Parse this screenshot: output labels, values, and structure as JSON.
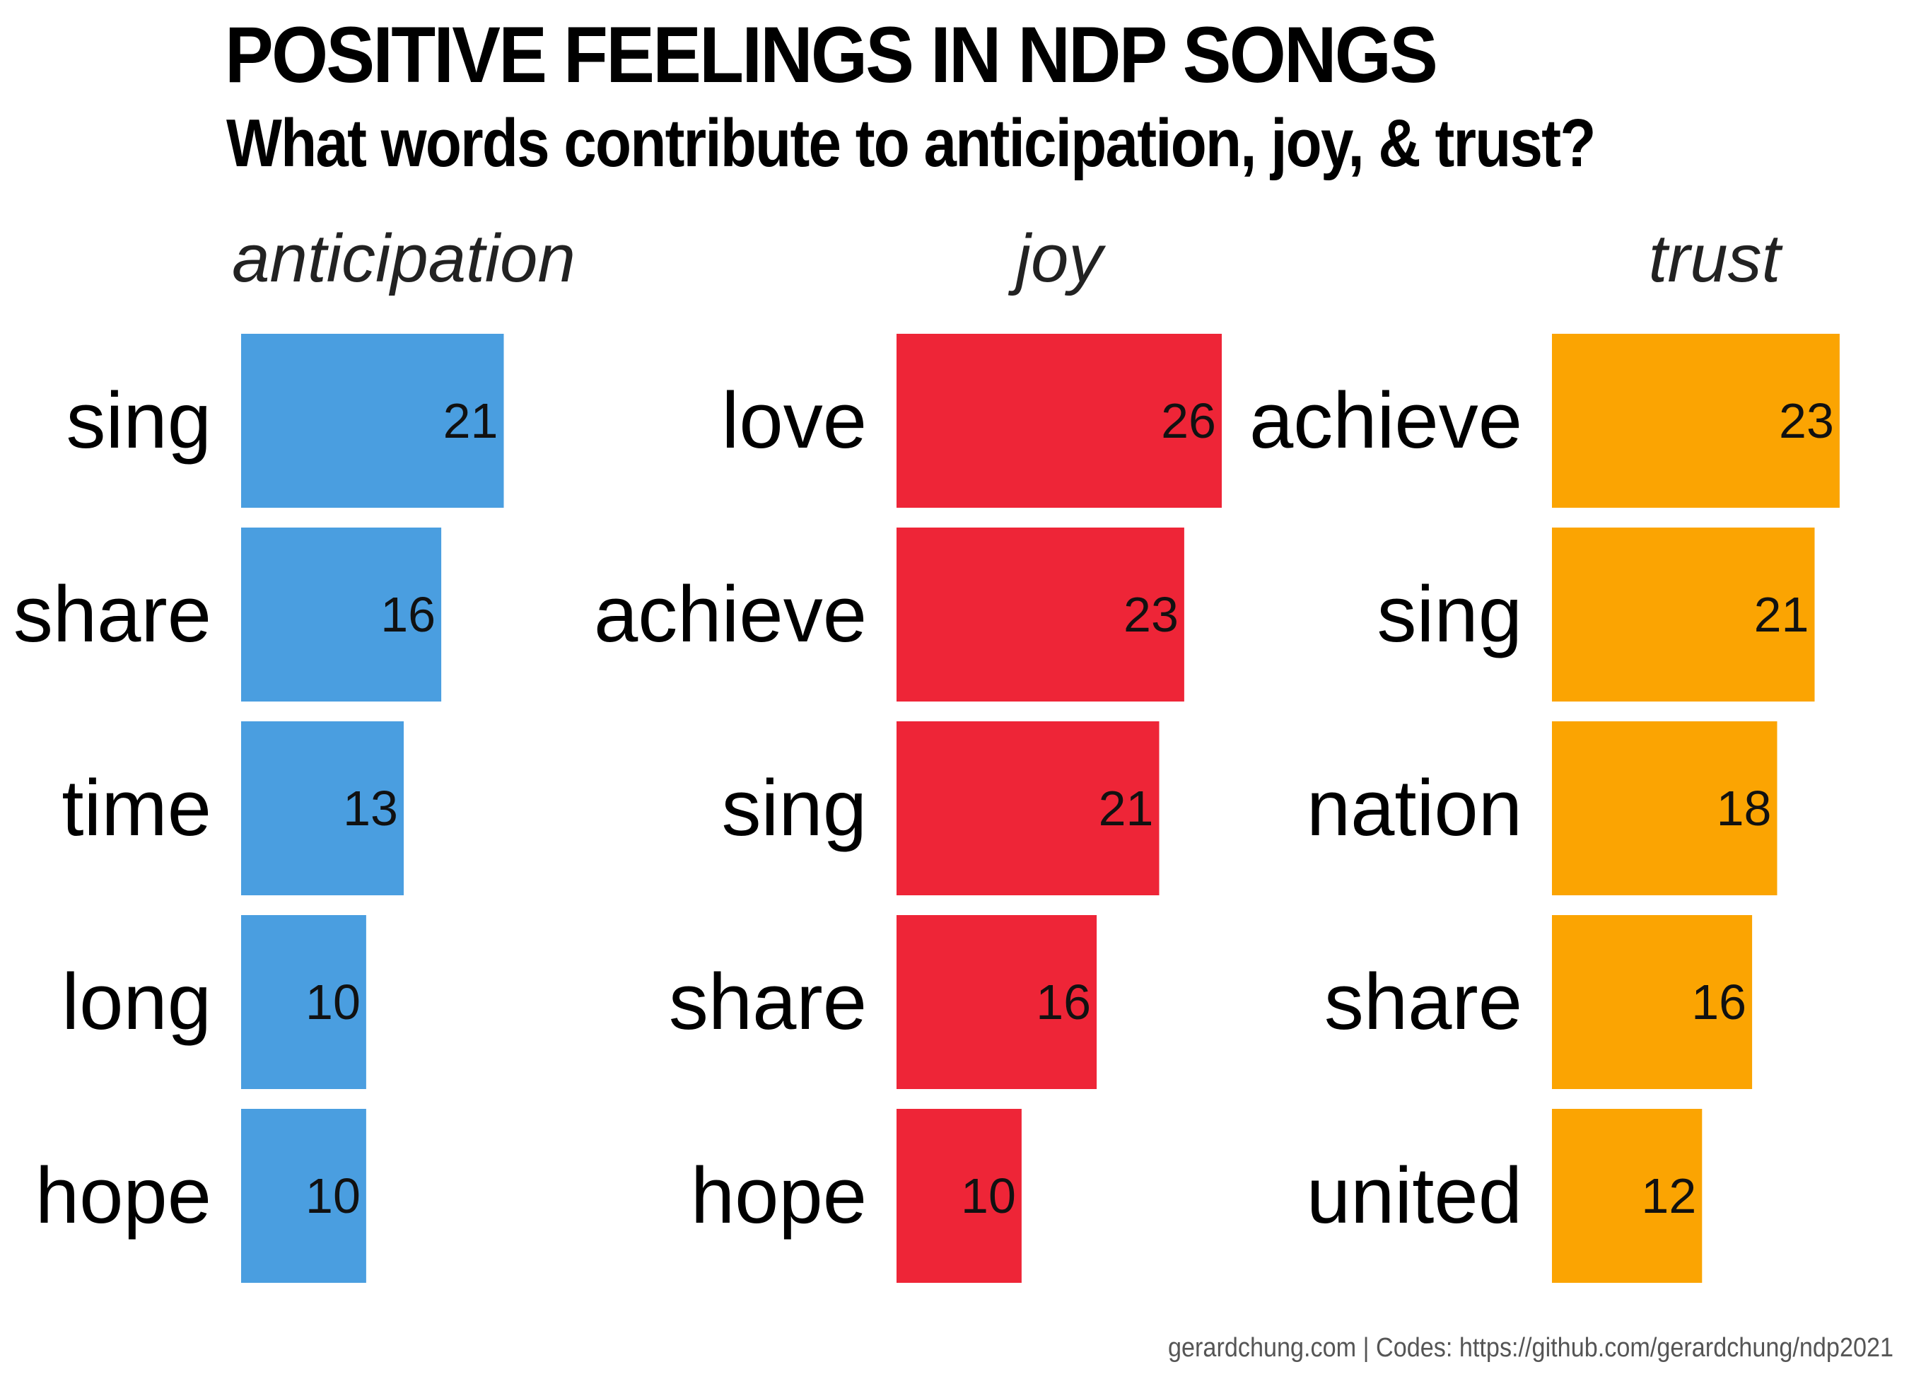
{
  "header": {
    "title": "POSITIVE FEELINGS IN NDP SONGS",
    "subtitle": "What words contribute to anticipation, joy, & trust?"
  },
  "caption": "gerardchung.com | Codes: https://github.com/gerardchung/ndp2021",
  "chart_data": [
    {
      "type": "bar",
      "orientation": "horizontal",
      "title": "anticipation",
      "color": "#4a9ee0",
      "categories": [
        "sing",
        "share",
        "time",
        "long",
        "hope"
      ],
      "values": [
        21,
        16,
        13,
        10,
        10
      ],
      "xlim": [
        0,
        26
      ]
    },
    {
      "type": "bar",
      "orientation": "horizontal",
      "title": "joy",
      "color": "#ee2537",
      "categories": [
        "love",
        "achieve",
        "sing",
        "share",
        "hope"
      ],
      "values": [
        26,
        23,
        21,
        16,
        10
      ],
      "xlim": [
        0,
        26
      ]
    },
    {
      "type": "bar",
      "orientation": "horizontal",
      "title": "trust",
      "color": "#fba402",
      "categories": [
        "achieve",
        "sing",
        "nation",
        "share",
        "united"
      ],
      "values": [
        23,
        21,
        18,
        16,
        12
      ],
      "xlim": [
        0,
        26
      ]
    }
  ]
}
